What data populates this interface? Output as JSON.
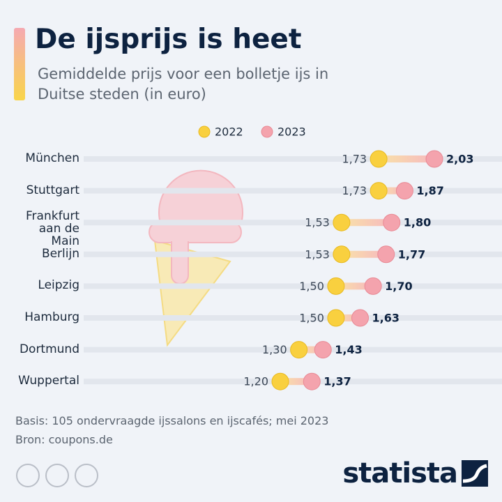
{
  "chart_data": {
    "type": "dumbbell",
    "title": "De ijsprijs is heet",
    "subtitle": "Gemiddelde prijs voor een bolletje ijs in Duitse steden (in euro)",
    "categories": [
      "München",
      "Stuttgart",
      "Frankfurt aan de Main",
      "Berlijn",
      "Leipzig",
      "Hamburg",
      "Dortmund",
      "Wuppertal"
    ],
    "series": [
      {
        "name": "2022",
        "color": "#f9d03f",
        "values": [
          1.73,
          1.73,
          1.53,
          1.53,
          1.5,
          1.5,
          1.3,
          1.2
        ],
        "value_labels": [
          "1,73",
          "1,73",
          "1,53",
          "1,53",
          "1,50",
          "1,50",
          "1,30",
          "1,20"
        ]
      },
      {
        "name": "2023",
        "color": "#f4a3ad",
        "values": [
          2.03,
          1.87,
          1.8,
          1.77,
          1.7,
          1.63,
          1.43,
          1.37
        ],
        "value_labels": [
          "2,03",
          "1,87",
          "1,80",
          "1,77",
          "1,70",
          "1,63",
          "1,43",
          "1,37"
        ]
      }
    ],
    "note": "Basis: 105 ondervraagde ijssalons en ijscafés; mei 2023",
    "source": "Bron: coupons.de",
    "brand": "statista"
  }
}
